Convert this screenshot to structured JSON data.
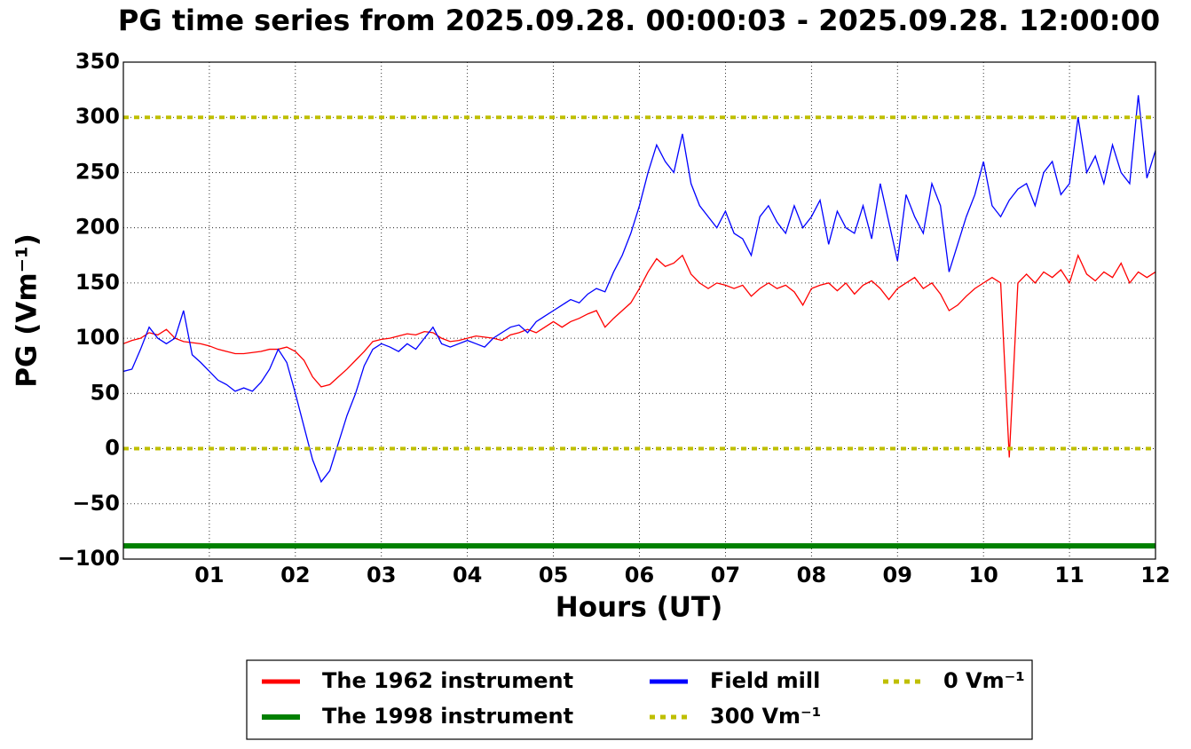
{
  "chart_data": {
    "type": "line",
    "title": "PG time series from 2025.09.28. 00:00:03 - 2025.09.28. 12:00:00",
    "x_label": "Hours (UT)",
    "y_label": "PG (Vm⁻¹)",
    "xlim": [
      0,
      12
    ],
    "xticks": [
      {
        "value": 1,
        "label": "01"
      },
      {
        "value": 2,
        "label": "02"
      },
      {
        "value": 3,
        "label": "03"
      },
      {
        "value": 4,
        "label": "04"
      },
      {
        "value": 5,
        "label": "05"
      },
      {
        "value": 6,
        "label": "06"
      },
      {
        "value": 7,
        "label": "07"
      },
      {
        "value": 8,
        "label": "08"
      },
      {
        "value": 9,
        "label": "09"
      },
      10,
      11,
      12
    ],
    "ylim": [
      -100,
      350
    ],
    "yticks": [
      {
        "value": -100,
        "label": "−100"
      },
      {
        "value": -50,
        "label": "−50"
      },
      0,
      50,
      100,
      150,
      200,
      250,
      300,
      350
    ],
    "grid": true,
    "legend": {
      "position": "bottom",
      "columns": 3
    },
    "series": [
      {
        "name": "The 1962 instrument",
        "color": "#ff0000",
        "width": 1.3,
        "style": "solid",
        "x": [
          0,
          0.1,
          0.2,
          0.3,
          0.4,
          0.5,
          0.6,
          0.7,
          0.8,
          0.9,
          1,
          1.1,
          1.2,
          1.3,
          1.4,
          1.5,
          1.6,
          1.7,
          1.8,
          1.9,
          2,
          2.1,
          2.2,
          2.3,
          2.4,
          2.5,
          2.6,
          2.7,
          2.8,
          2.9,
          3,
          3.1,
          3.2,
          3.3,
          3.4,
          3.5,
          3.6,
          3.7,
          3.8,
          3.9,
          4,
          4.1,
          4.2,
          4.3,
          4.4,
          4.5,
          4.6,
          4.7,
          4.8,
          4.9,
          5,
          5.1,
          5.2,
          5.3,
          5.4,
          5.5,
          5.6,
          5.7,
          5.8,
          5.9,
          6,
          6.1,
          6.2,
          6.3,
          6.4,
          6.5,
          6.6,
          6.7,
          6.8,
          6.9,
          7,
          7.1,
          7.2,
          7.3,
          7.4,
          7.5,
          7.6,
          7.7,
          7.8,
          7.9,
          8,
          8.1,
          8.2,
          8.3,
          8.4,
          8.5,
          8.6,
          8.7,
          8.8,
          8.9,
          9,
          9.1,
          9.2,
          9.3,
          9.4,
          9.5,
          9.6,
          9.7,
          9.8,
          9.9,
          10,
          10.1,
          10.2,
          10.3,
          10.4,
          10.5,
          10.6,
          10.7,
          10.8,
          10.9,
          11,
          11.1,
          11.2,
          11.3,
          11.4,
          11.5,
          11.6,
          11.7,
          11.8,
          11.9,
          12
        ],
        "values": [
          95,
          98,
          100,
          105,
          103,
          108,
          100,
          97,
          96,
          95,
          93,
          90,
          88,
          86,
          86,
          87,
          88,
          90,
          90,
          92,
          88,
          80,
          65,
          56,
          58,
          65,
          72,
          80,
          88,
          97,
          99,
          100,
          102,
          104,
          103,
          106,
          105,
          100,
          97,
          98,
          100,
          102,
          101,
          100,
          98,
          103,
          105,
          108,
          105,
          110,
          115,
          110,
          115,
          118,
          122,
          125,
          110,
          118,
          125,
          132,
          145,
          160,
          172,
          165,
          168,
          175,
          158,
          150,
          145,
          150,
          148,
          145,
          148,
          138,
          145,
          150,
          145,
          148,
          142,
          130,
          145,
          148,
          150,
          143,
          150,
          140,
          148,
          152,
          145,
          135,
          145,
          150,
          155,
          145,
          150,
          140,
          125,
          130,
          138,
          145,
          150,
          155,
          150,
          -8,
          150,
          158,
          150,
          160,
          155,
          162,
          150,
          175,
          158,
          152,
          160,
          155,
          168,
          150,
          160,
          155,
          160
        ]
      },
      {
        "name": "The 1998 instrument",
        "color": "#008000",
        "width": 6,
        "style": "solid",
        "x": [
          0,
          12
        ],
        "values": [
          -88,
          -88
        ]
      },
      {
        "name": "Field mill",
        "color": "#0000ff",
        "width": 1.3,
        "style": "solid",
        "x": [
          0,
          0.1,
          0.2,
          0.3,
          0.4,
          0.5,
          0.6,
          0.7,
          0.8,
          0.9,
          1,
          1.1,
          1.2,
          1.3,
          1.4,
          1.5,
          1.6,
          1.7,
          1.8,
          1.9,
          2,
          2.1,
          2.2,
          2.3,
          2.4,
          2.5,
          2.6,
          2.7,
          2.8,
          2.9,
          3,
          3.1,
          3.2,
          3.3,
          3.4,
          3.5,
          3.6,
          3.7,
          3.8,
          3.9,
          4,
          4.1,
          4.2,
          4.3,
          4.4,
          4.5,
          4.6,
          4.7,
          4.8,
          4.9,
          5,
          5.1,
          5.2,
          5.3,
          5.4,
          5.5,
          5.6,
          5.7,
          5.8,
          5.9,
          6,
          6.1,
          6.2,
          6.3,
          6.4,
          6.5,
          6.6,
          6.7,
          6.8,
          6.9,
          7,
          7.1,
          7.2,
          7.3,
          7.4,
          7.5,
          7.6,
          7.7,
          7.8,
          7.9,
          8,
          8.1,
          8.2,
          8.3,
          8.4,
          8.5,
          8.6,
          8.7,
          8.8,
          8.9,
          9,
          9.1,
          9.2,
          9.3,
          9.4,
          9.5,
          9.6,
          9.7,
          9.8,
          9.9,
          10,
          10.1,
          10.2,
          10.3,
          10.4,
          10.5,
          10.6,
          10.7,
          10.8,
          10.9,
          11,
          11.1,
          11.2,
          11.3,
          11.4,
          11.5,
          11.6,
          11.7,
          11.8,
          11.9,
          12
        ],
        "values": [
          70,
          72,
          90,
          110,
          100,
          95,
          100,
          125,
          85,
          78,
          70,
          62,
          58,
          52,
          55,
          52,
          60,
          72,
          90,
          78,
          50,
          20,
          -10,
          -30,
          -20,
          5,
          30,
          50,
          75,
          90,
          95,
          92,
          88,
          95,
          90,
          100,
          110,
          95,
          92,
          95,
          98,
          95,
          92,
          100,
          105,
          110,
          112,
          105,
          115,
          120,
          125,
          130,
          135,
          132,
          140,
          145,
          142,
          160,
          175,
          195,
          220,
          250,
          275,
          260,
          250,
          285,
          240,
          220,
          210,
          200,
          215,
          195,
          190,
          175,
          210,
          220,
          205,
          195,
          220,
          200,
          210,
          225,
          185,
          215,
          200,
          195,
          220,
          190,
          240,
          205,
          170,
          230,
          210,
          195,
          240,
          220,
          160,
          185,
          210,
          230,
          260,
          220,
          210,
          225,
          235,
          240,
          220,
          250,
          260,
          230,
          240,
          300,
          250,
          265,
          240,
          275,
          250,
          240,
          320,
          245,
          270
        ]
      },
      {
        "name": "300 Vm⁻¹",
        "color": "#bfbf00",
        "width": 4,
        "style": "dotted",
        "x": [
          0,
          12
        ],
        "values": [
          300,
          300
        ]
      },
      {
        "name": "0 Vm⁻¹",
        "color": "#bfbf00",
        "width": 4,
        "style": "dotted",
        "x": [
          0,
          12
        ],
        "values": [
          0,
          0
        ]
      }
    ]
  }
}
